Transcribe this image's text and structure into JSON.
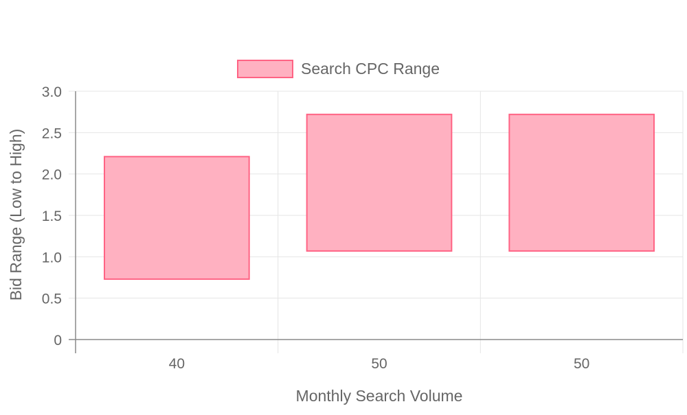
{
  "chart_data": {
    "type": "bar",
    "bar_style": "floating-range",
    "categories": [
      "40",
      "50",
      "50"
    ],
    "series": [
      {
        "name": "Search CPC Range",
        "ranges": [
          [
            0.73,
            2.21
          ],
          [
            1.07,
            2.72
          ],
          [
            1.07,
            2.72
          ]
        ]
      }
    ],
    "xlabel": "Monthly Search Volume",
    "ylabel": "Bid Range (Low to High)",
    "ylim": [
      0,
      3
    ],
    "yticks": [
      "0",
      "0.5",
      "1.0",
      "1.5",
      "2.0",
      "2.5",
      "3.0"
    ],
    "grid": true,
    "legend_position": "top-center",
    "colors": {
      "bar_fill": "#ffb1c1",
      "bar_border": "#ff6384",
      "grid": "#e5e5e5",
      "axis": "#8a8a8a",
      "text": "#666666"
    }
  }
}
